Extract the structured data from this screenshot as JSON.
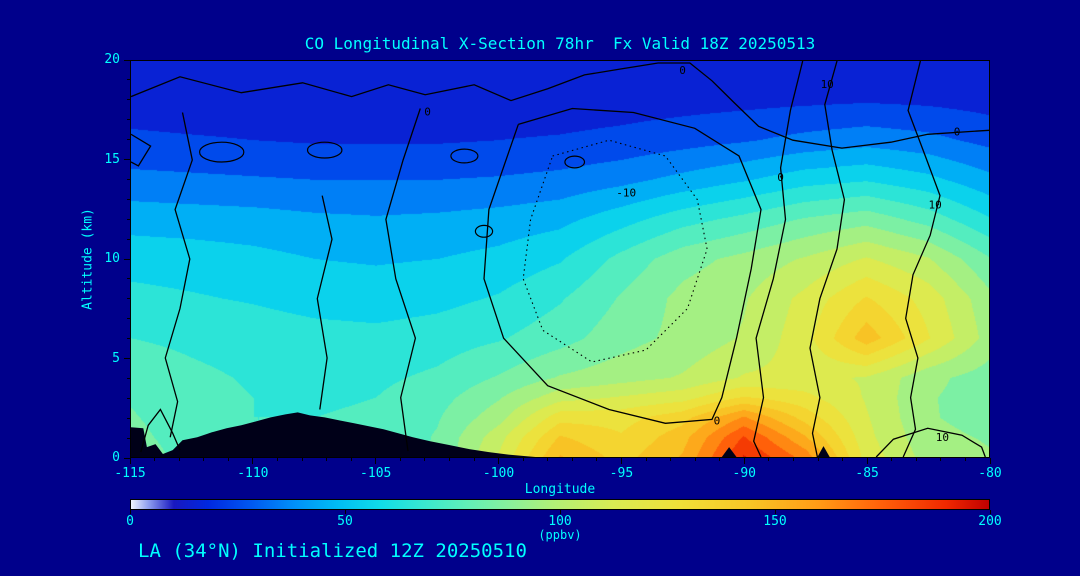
{
  "page": {
    "background": "#00008B",
    "accent": "#00FFFF",
    "footer": "LA (34°N) Initialized 12Z 20250510"
  },
  "chart_data": {
    "type": "heatmap",
    "title": "CO Longitudinal X-Section 78hr  Fx Valid 18Z 20250513",
    "xlabel": "Longitude",
    "ylabel": "Altitude (km)",
    "units": "ppbv",
    "x_range": [
      -115,
      -80
    ],
    "y_range": [
      0,
      20
    ],
    "x_ticks": [
      -115,
      -110,
      -105,
      -100,
      -95,
      -90,
      -85,
      -80
    ],
    "y_ticks": [
      0,
      5,
      10,
      15,
      20
    ],
    "x_minor_step": 1,
    "y_minor_step": 1,
    "x": [
      -115,
      -112.5,
      -110,
      -107.5,
      -105,
      -102.5,
      -100,
      -97.5,
      -95,
      -92.5,
      -90,
      -87.5,
      -85,
      -82.5,
      -80
    ],
    "y": [
      0,
      1,
      2,
      3,
      4,
      6,
      8,
      10,
      12,
      14,
      16,
      18,
      20
    ],
    "values": [
      [
        86,
        76,
        71,
        70,
        73,
        81,
        111,
        151,
        136,
        151,
        191,
        166,
        116,
        96,
        91
      ],
      [
        83,
        75,
        70,
        70,
        72,
        81,
        106,
        141,
        131,
        146,
        181,
        151,
        113,
        93,
        89
      ],
      [
        81,
        74,
        70,
        70,
        71,
        79,
        96,
        126,
        126,
        136,
        161,
        136,
        111,
        91,
        86
      ],
      [
        79,
        73,
        70,
        69,
        70,
        76,
        89,
        106,
        111,
        116,
        131,
        123,
        109,
        91,
        85
      ],
      [
        76,
        72,
        69,
        68,
        68,
        72,
        81,
        91,
        96,
        101,
        111,
        113,
        109,
        93,
        85
      ],
      [
        70,
        68,
        66,
        64,
        63,
        65,
        69,
        76,
        86,
        93,
        101,
        116,
        146,
        121,
        96
      ],
      [
        63,
        61,
        59,
        56,
        55,
        57,
        61,
        69,
        81,
        93,
        99,
        113,
        131,
        116,
        93
      ],
      [
        56,
        55,
        53,
        50,
        49,
        50,
        53,
        59,
        73,
        86,
        93,
        101,
        111,
        101,
        81
      ],
      [
        46,
        45,
        44,
        42,
        41,
        42,
        44,
        47,
        56,
        66,
        73,
        81,
        86,
        76,
        61
      ],
      [
        33,
        32,
        31,
        30,
        30,
        30,
        31,
        33,
        37,
        43,
        49,
        56,
        59,
        53,
        43
      ],
      [
        22,
        21,
        20,
        19,
        19,
        19,
        20,
        21,
        23,
        26,
        29,
        33,
        36,
        33,
        27
      ],
      [
        15,
        14,
        14,
        13,
        13,
        13,
        14,
        14,
        15,
        16,
        17,
        18,
        19,
        18,
        16
      ],
      [
        12,
        12,
        11,
        11,
        11,
        11,
        12,
        12,
        12,
        13,
        13,
        14,
        14,
        13,
        12
      ]
    ],
    "colormap": [
      {
        "value": 0,
        "color": "#F0F6FF"
      },
      {
        "value": 4,
        "color": "#90A0F0"
      },
      {
        "value": 10,
        "color": "#1818C0"
      },
      {
        "value": 18,
        "color": "#0028E0"
      },
      {
        "value": 28,
        "color": "#0058F0"
      },
      {
        "value": 38,
        "color": "#0090F8"
      },
      {
        "value": 48,
        "color": "#00BCF4"
      },
      {
        "value": 58,
        "color": "#10DCE8"
      },
      {
        "value": 68,
        "color": "#38E8D0"
      },
      {
        "value": 78,
        "color": "#60EFB8"
      },
      {
        "value": 88,
        "color": "#88F09C"
      },
      {
        "value": 98,
        "color": "#B0F078"
      },
      {
        "value": 112,
        "color": "#D8EC54"
      },
      {
        "value": 128,
        "color": "#F0E038"
      },
      {
        "value": 144,
        "color": "#F8C626"
      },
      {
        "value": 160,
        "color": "#FF9C16"
      },
      {
        "value": 175,
        "color": "#FF600A"
      },
      {
        "value": 190,
        "color": "#F02800"
      },
      {
        "value": 200,
        "color": "#C00000"
      }
    ],
    "colorbar": {
      "min": 0,
      "max": 200,
      "ticks": [
        0,
        50,
        100,
        150,
        200
      ],
      "label": "(ppbv)"
    },
    "terrain": {
      "color": "#000018",
      "polygons": [
        [
          [
            -115,
            0
          ],
          [
            -115,
            1.5
          ],
          [
            -114.5,
            1.45
          ],
          [
            -114.35,
            0.5
          ],
          [
            -114.0,
            0.65
          ],
          [
            -113.7,
            0.15
          ],
          [
            -113.3,
            0.35
          ],
          [
            -112.9,
            0.85
          ],
          [
            -112.3,
            1.0
          ],
          [
            -111.7,
            1.25
          ],
          [
            -111.1,
            1.45
          ],
          [
            -110.5,
            1.6
          ],
          [
            -109.9,
            1.8
          ],
          [
            -109.3,
            2.0
          ],
          [
            -108.7,
            2.15
          ],
          [
            -108.2,
            2.25
          ],
          [
            -107.7,
            2.1
          ],
          [
            -107.1,
            2.0
          ],
          [
            -106.5,
            1.85
          ],
          [
            -105.9,
            1.7
          ],
          [
            -105.3,
            1.55
          ],
          [
            -104.7,
            1.4
          ],
          [
            -104.1,
            1.2
          ],
          [
            -103.5,
            1.0
          ],
          [
            -102.8,
            0.8
          ],
          [
            -102.0,
            0.6
          ],
          [
            -101.2,
            0.4
          ],
          [
            -100.4,
            0.25
          ],
          [
            -99.6,
            0.12
          ],
          [
            -98.8,
            0.03
          ],
          [
            -98.5,
            0
          ]
        ],
        [
          [
            -90.9,
            0
          ],
          [
            -90.6,
            0.5
          ],
          [
            -90.3,
            0
          ]
        ],
        [
          [
            -87.0,
            0
          ],
          [
            -86.75,
            0.55
          ],
          [
            -86.5,
            0
          ]
        ]
      ]
    },
    "contours": [
      {
        "level": 0,
        "style": "solid",
        "points": [
          [
            -115,
            18.2
          ],
          [
            -113,
            19.2
          ],
          [
            -110.5,
            18.4
          ],
          [
            -108,
            18.9
          ],
          [
            -106,
            18.2
          ],
          [
            -104.5,
            18.8
          ],
          [
            -103,
            18.3
          ],
          [
            -101,
            18.8
          ],
          [
            -99.5,
            18.0
          ],
          [
            -98,
            18.6
          ],
          [
            -96.5,
            19.3
          ],
          [
            -95,
            19.6
          ],
          [
            -93.5,
            19.9
          ],
          [
            -92.2,
            19.9
          ],
          [
            -91.3,
            19.0
          ],
          [
            -90.4,
            17.9
          ],
          [
            -89.4,
            16.7
          ],
          [
            -88,
            16.0
          ],
          [
            -86,
            15.6
          ],
          [
            -84,
            15.9
          ],
          [
            -82.5,
            16.3
          ],
          [
            -80,
            16.5
          ]
        ]
      },
      {
        "level": 0,
        "style": "solid",
        "points": [
          [
            -115,
            16.3
          ],
          [
            -114.2,
            15.7
          ],
          [
            -114.7,
            14.7
          ],
          [
            -115,
            14.9
          ]
        ]
      },
      {
        "level": 0,
        "style": "solid",
        "points": [
          [
            -112.9,
            17.4
          ],
          [
            -112.5,
            15.0
          ],
          [
            -113.2,
            12.5
          ],
          [
            -112.6,
            10.0
          ],
          [
            -113.0,
            7.5
          ],
          [
            -113.6,
            5.0
          ],
          [
            -113.1,
            2.8
          ],
          [
            -113.4,
            1.0
          ]
        ]
      },
      {
        "level": 0,
        "style": "solid",
        "points": [
          [
            -103.2,
            17.6
          ],
          [
            -103.9,
            15.0
          ],
          [
            -104.6,
            12.0
          ],
          [
            -104.2,
            9.0
          ],
          [
            -103.4,
            6.0
          ],
          [
            -104.0,
            3.0
          ],
          [
            -103.7,
            0.3
          ]
        ]
      },
      {
        "level": 0,
        "style": "solid",
        "points": [
          [
            -99.2,
            16.8
          ],
          [
            -97.0,
            17.6
          ],
          [
            -94.5,
            17.4
          ],
          [
            -92.0,
            16.6
          ],
          [
            -90.2,
            15.2
          ],
          [
            -89.3,
            12.5
          ],
          [
            -89.7,
            9.5
          ],
          [
            -90.3,
            6.0
          ],
          [
            -90.9,
            3.0
          ],
          [
            -91.3,
            1.9
          ],
          [
            -93.2,
            1.7
          ],
          [
            -95.5,
            2.4
          ],
          [
            -98.0,
            3.6
          ],
          [
            -99.8,
            6.0
          ],
          [
            -100.6,
            9.0
          ],
          [
            -100.4,
            12.5
          ],
          [
            -99.2,
            16.8
          ]
        ]
      },
      {
        "level": -10,
        "style": "dotted",
        "points": [
          [
            -97.8,
            15.2
          ],
          [
            -95.5,
            16.0
          ],
          [
            -93.2,
            15.2
          ],
          [
            -91.9,
            13.0
          ],
          [
            -91.5,
            10.5
          ],
          [
            -92.3,
            7.5
          ],
          [
            -94.0,
            5.4
          ],
          [
            -96.2,
            4.8
          ],
          [
            -98.2,
            6.4
          ],
          [
            -99.0,
            9.0
          ],
          [
            -98.7,
            12.0
          ],
          [
            -97.8,
            15.2
          ]
        ]
      },
      {
        "level": 10,
        "style": "solid",
        "points": [
          [
            -86.2,
            20
          ],
          [
            -86.7,
            17.8
          ],
          [
            -86.4,
            15.5
          ],
          [
            -85.9,
            13.0
          ],
          [
            -86.2,
            10.5
          ],
          [
            -86.9,
            8.0
          ],
          [
            -87.3,
            5.5
          ],
          [
            -86.9,
            3.0
          ],
          [
            -87.2,
            1.2
          ],
          [
            -87.0,
            0
          ]
        ]
      },
      {
        "level": 10,
        "style": "solid",
        "points": [
          [
            -82.8,
            20
          ],
          [
            -83.3,
            17.5
          ],
          [
            -82.6,
            15.2
          ],
          [
            -82.0,
            13.2
          ],
          [
            -82.4,
            11.2
          ],
          [
            -83.1,
            9.2
          ],
          [
            -83.4,
            7.0
          ],
          [
            -82.9,
            5.0
          ],
          [
            -83.2,
            3.0
          ],
          [
            -83.0,
            1.4
          ],
          [
            -83.5,
            0
          ]
        ]
      },
      {
        "level": 10,
        "style": "solid",
        "points": [
          [
            -84.6,
            0
          ],
          [
            -83.9,
            0.9
          ],
          [
            -82.5,
            1.45
          ],
          [
            -81.1,
            1.1
          ],
          [
            -80.3,
            0.5
          ],
          [
            -80.15,
            0
          ]
        ]
      },
      {
        "level": 0,
        "style": "solid",
        "points": [
          [
            -87.6,
            20
          ],
          [
            -88.1,
            17.5
          ],
          [
            -88.5,
            14.6
          ],
          [
            -88.3,
            12.0
          ],
          [
            -88.8,
            9.0
          ],
          [
            -89.5,
            6.0
          ],
          [
            -89.2,
            3.0
          ],
          [
            -89.6,
            0.8
          ],
          [
            -89.3,
            0
          ]
        ]
      },
      {
        "level": 0,
        "style": "solid",
        "points": [
          [
            -114.6,
            0.25
          ],
          [
            -114.3,
            1.6
          ],
          [
            -113.8,
            2.4
          ],
          [
            -113.3,
            1.2
          ],
          [
            -113.0,
            0.35
          ]
        ]
      },
      {
        "level": 0,
        "style": "solid",
        "points": [
          [
            -107.3,
            2.4
          ],
          [
            -107.0,
            5.0
          ],
          [
            -107.4,
            8.0
          ],
          [
            -106.8,
            11.0
          ],
          [
            -107.2,
            13.2
          ]
        ]
      }
    ],
    "contour_loops": [
      {
        "level": 0,
        "cx": -111.3,
        "cy": 15.4,
        "rx": 0.9,
        "ry": 0.5
      },
      {
        "level": 0,
        "cx": -107.1,
        "cy": 15.5,
        "rx": 0.7,
        "ry": 0.4
      },
      {
        "level": 0,
        "cx": -101.4,
        "cy": 15.2,
        "rx": 0.55,
        "ry": 0.35
      },
      {
        "level": 0,
        "cx": -100.6,
        "cy": 11.4,
        "rx": 0.35,
        "ry": 0.3
      },
      {
        "level": 0,
        "cx": -96.9,
        "cy": 14.9,
        "rx": 0.4,
        "ry": 0.3
      }
    ],
    "contour_labels": [
      {
        "text": "0",
        "lon": -92.5,
        "alt": 19.5
      },
      {
        "text": "0",
        "lon": -81.3,
        "alt": 16.4
      },
      {
        "text": "0",
        "lon": -102.9,
        "alt": 17.4
      },
      {
        "text": "0",
        "lon": -88.5,
        "alt": 14.1
      },
      {
        "text": "-10",
        "lon": -94.8,
        "alt": 13.3
      },
      {
        "text": "10",
        "lon": -82.2,
        "alt": 12.7
      },
      {
        "text": "10",
        "lon": -86.6,
        "alt": 18.8
      },
      {
        "text": "0",
        "lon": -91.1,
        "alt": 1.8
      },
      {
        "text": "10",
        "lon": -81.9,
        "alt": 0.95
      }
    ]
  }
}
